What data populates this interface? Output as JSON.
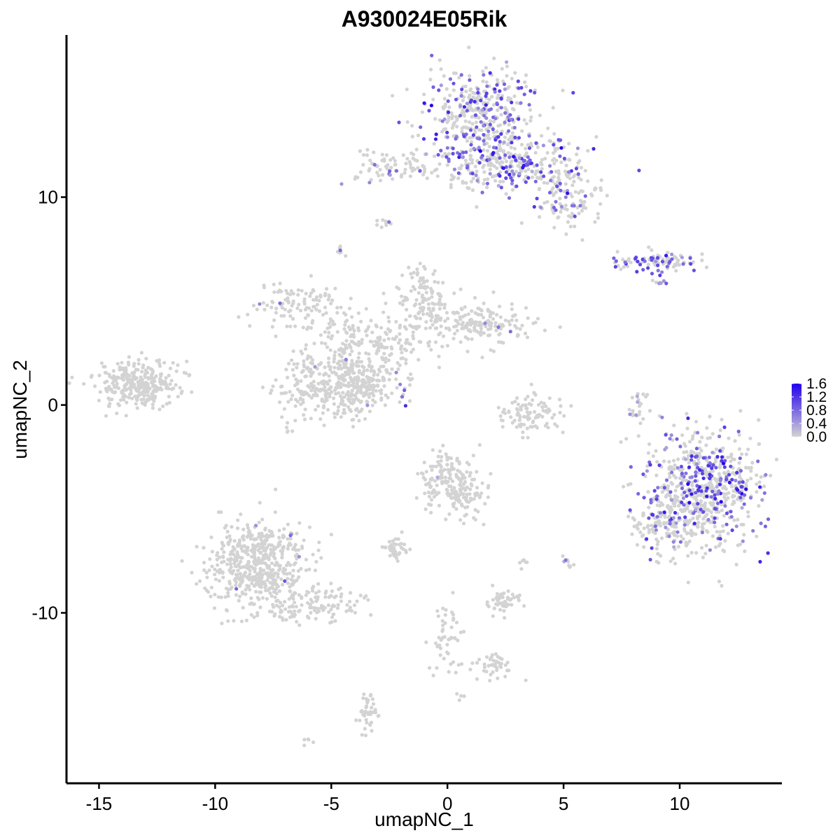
{
  "chart_data": {
    "type": "scatter",
    "title": "A930024E05Rik",
    "xlabel": "umapNC_1",
    "ylabel": "umapNC_2",
    "xlim": [
      -16.4,
      14.4
    ],
    "ylim": [
      -18.2,
      17.8
    ],
    "x_ticks": [
      -15,
      -10,
      -5,
      0,
      5,
      10
    ],
    "x_tick_labels": [
      "-15",
      "-10",
      "-5",
      "0",
      "5",
      "10"
    ],
    "y_ticks": [
      -10,
      0,
      10
    ],
    "y_tick_labels": [
      "-10",
      "0",
      "10"
    ],
    "grid": false,
    "legend_position": "right",
    "color_scale": {
      "low_color": "#d3d3d3",
      "high_color": "#2200ee",
      "min": 0.0,
      "max": 1.6,
      "ticks": [
        0.0,
        0.4,
        0.8,
        1.2,
        1.6
      ],
      "tick_labels": [
        "0.0",
        "0.4",
        "0.8",
        "1.2",
        "1.6"
      ]
    },
    "clusters": [
      {
        "cx": 1.5,
        "cy": 13.8,
        "sx": 1.2,
        "sy": 1.3,
        "n": 420,
        "expr_frac": 0.3,
        "expr_mean": 0.9
      },
      {
        "cx": 2.8,
        "cy": 11.6,
        "sx": 1.4,
        "sy": 0.7,
        "n": 260,
        "expr_frac": 0.28,
        "expr_mean": 0.9
      },
      {
        "cx": 5.1,
        "cy": 10.0,
        "sx": 0.7,
        "sy": 0.8,
        "n": 120,
        "expr_frac": 0.2,
        "expr_mean": 0.8
      },
      {
        "cx": -2.2,
        "cy": 11.5,
        "sx": 1.1,
        "sy": 0.35,
        "n": 80,
        "expr_frac": 0.15,
        "expr_mean": 0.7
      },
      {
        "cx": 9.0,
        "cy": 6.9,
        "sx": 1.0,
        "sy": 0.22,
        "n": 90,
        "expr_frac": 0.45,
        "expr_mean": 1.0
      },
      {
        "cx": 11.0,
        "cy": -4.0,
        "sx": 1.3,
        "sy": 1.4,
        "n": 650,
        "expr_frac": 0.3,
        "expr_mean": 0.9
      },
      {
        "cx": 9.6,
        "cy": -5.8,
        "sx": 0.8,
        "sy": 0.9,
        "n": 140,
        "expr_frac": 0.1,
        "expr_mean": 0.6
      },
      {
        "cx": 8.2,
        "cy": 0.0,
        "sx": 0.25,
        "sy": 0.6,
        "n": 22,
        "expr_frac": 0.15,
        "expr_mean": 0.6
      },
      {
        "cx": -13.3,
        "cy": 1.0,
        "sx": 0.9,
        "sy": 0.55,
        "n": 300,
        "expr_frac": 0.005,
        "expr_mean": 0.6
      },
      {
        "cx": -8.3,
        "cy": -7.6,
        "sx": 1.1,
        "sy": 1.0,
        "n": 520,
        "expr_frac": 0.01,
        "expr_mean": 0.6
      },
      {
        "cx": -6.0,
        "cy": -9.6,
        "sx": 1.2,
        "sy": 0.45,
        "n": 130,
        "expr_frac": 0.01,
        "expr_mean": 0.6
      },
      {
        "cx": -5.5,
        "cy": 0.9,
        "sx": 0.9,
        "sy": 0.8,
        "n": 220,
        "expr_frac": 0.01,
        "expr_mean": 0.6
      },
      {
        "cx": -3.7,
        "cy": 1.0,
        "sx": 0.7,
        "sy": 0.8,
        "n": 200,
        "expr_frac": 0.01,
        "expr_mean": 0.6
      },
      {
        "cx": -1.1,
        "cy": 5.3,
        "sx": 0.45,
        "sy": 0.7,
        "n": 100,
        "expr_frac": 0.005,
        "expr_mean": 0.6
      },
      {
        "cx": 1.3,
        "cy": 4.0,
        "sx": 1.1,
        "sy": 0.5,
        "n": 180,
        "expr_frac": 0.005,
        "expr_mean": 0.6
      },
      {
        "cx": -2.8,
        "cy": 3.0,
        "sx": 1.3,
        "sy": 0.6,
        "n": 140,
        "expr_frac": 0.005,
        "expr_mean": 0.6
      },
      {
        "cx": -6.2,
        "cy": 4.8,
        "sx": 1.2,
        "sy": 0.6,
        "n": 120,
        "expr_frac": 0.05,
        "expr_mean": 0.7
      },
      {
        "cx": -4.3,
        "cy": 2.3,
        "sx": 0.3,
        "sy": 1.5,
        "n": 60,
        "expr_frac": 0.005,
        "expr_mean": 0.6
      },
      {
        "cx": 3.5,
        "cy": -0.5,
        "sx": 0.7,
        "sy": 0.5,
        "n": 100,
        "expr_frac": 0.0,
        "expr_mean": 0.6
      },
      {
        "cx": 0.0,
        "cy": -3.6,
        "sx": 0.6,
        "sy": 0.7,
        "n": 160,
        "expr_frac": 0.01,
        "expr_mean": 0.6
      },
      {
        "cx": 0.9,
        "cy": -4.5,
        "sx": 0.5,
        "sy": 0.6,
        "n": 50,
        "expr_frac": 0.0,
        "expr_mean": 0.6
      },
      {
        "cx": -2.3,
        "cy": -6.9,
        "sx": 0.3,
        "sy": 0.25,
        "n": 40,
        "expr_frac": 0.0,
        "expr_mean": 0.6
      },
      {
        "cx": 2.3,
        "cy": -9.5,
        "sx": 0.4,
        "sy": 0.3,
        "n": 50,
        "expr_frac": 0.0,
        "expr_mean": 0.6
      },
      {
        "cx": 2.1,
        "cy": -12.5,
        "sx": 0.5,
        "sy": 0.3,
        "n": 40,
        "expr_frac": 0.0,
        "expr_mean": 0.6
      },
      {
        "cx": 0.0,
        "cy": -11.0,
        "sx": 0.35,
        "sy": 1.0,
        "n": 50,
        "expr_frac": 0.0,
        "expr_mean": 0.6
      },
      {
        "cx": -3.4,
        "cy": -14.8,
        "sx": 0.2,
        "sy": 0.5,
        "n": 40,
        "expr_frac": 0.0,
        "expr_mean": 0.6
      },
      {
        "cx": -2.7,
        "cy": 8.7,
        "sx": 0.2,
        "sy": 0.1,
        "n": 10,
        "expr_frac": 0.3,
        "expr_mean": 0.6
      },
      {
        "cx": -4.6,
        "cy": 7.4,
        "sx": 0.15,
        "sy": 0.15,
        "n": 8,
        "expr_frac": 0.3,
        "expr_mean": 0.7
      },
      {
        "cx": 5.1,
        "cy": -7.4,
        "sx": 0.15,
        "sy": 0.2,
        "n": 10,
        "expr_frac": 0.1,
        "expr_mean": 0.6
      },
      {
        "cx": 3.3,
        "cy": -7.6,
        "sx": 0.1,
        "sy": 0.3,
        "n": 6,
        "expr_frac": 0.0,
        "expr_mean": 0.6
      },
      {
        "cx": -6.0,
        "cy": -16.2,
        "sx": 0.1,
        "sy": 0.1,
        "n": 5,
        "expr_frac": 0.0,
        "expr_mean": 0.6
      },
      {
        "cx": 0.6,
        "cy": -14.0,
        "sx": 0.1,
        "sy": 0.1,
        "n": 4,
        "expr_frac": 0.0,
        "expr_mean": 0.6
      },
      {
        "cx": -1.8,
        "cy": 1.0,
        "sx": 0.25,
        "sy": 0.5,
        "n": 15,
        "expr_frac": 0.4,
        "expr_mean": 0.7
      },
      {
        "cx": 9.0,
        "cy": 6.0,
        "sx": 0.25,
        "sy": 0.15,
        "n": 10,
        "expr_frac": 0.6,
        "expr_mean": 0.6
      }
    ]
  }
}
